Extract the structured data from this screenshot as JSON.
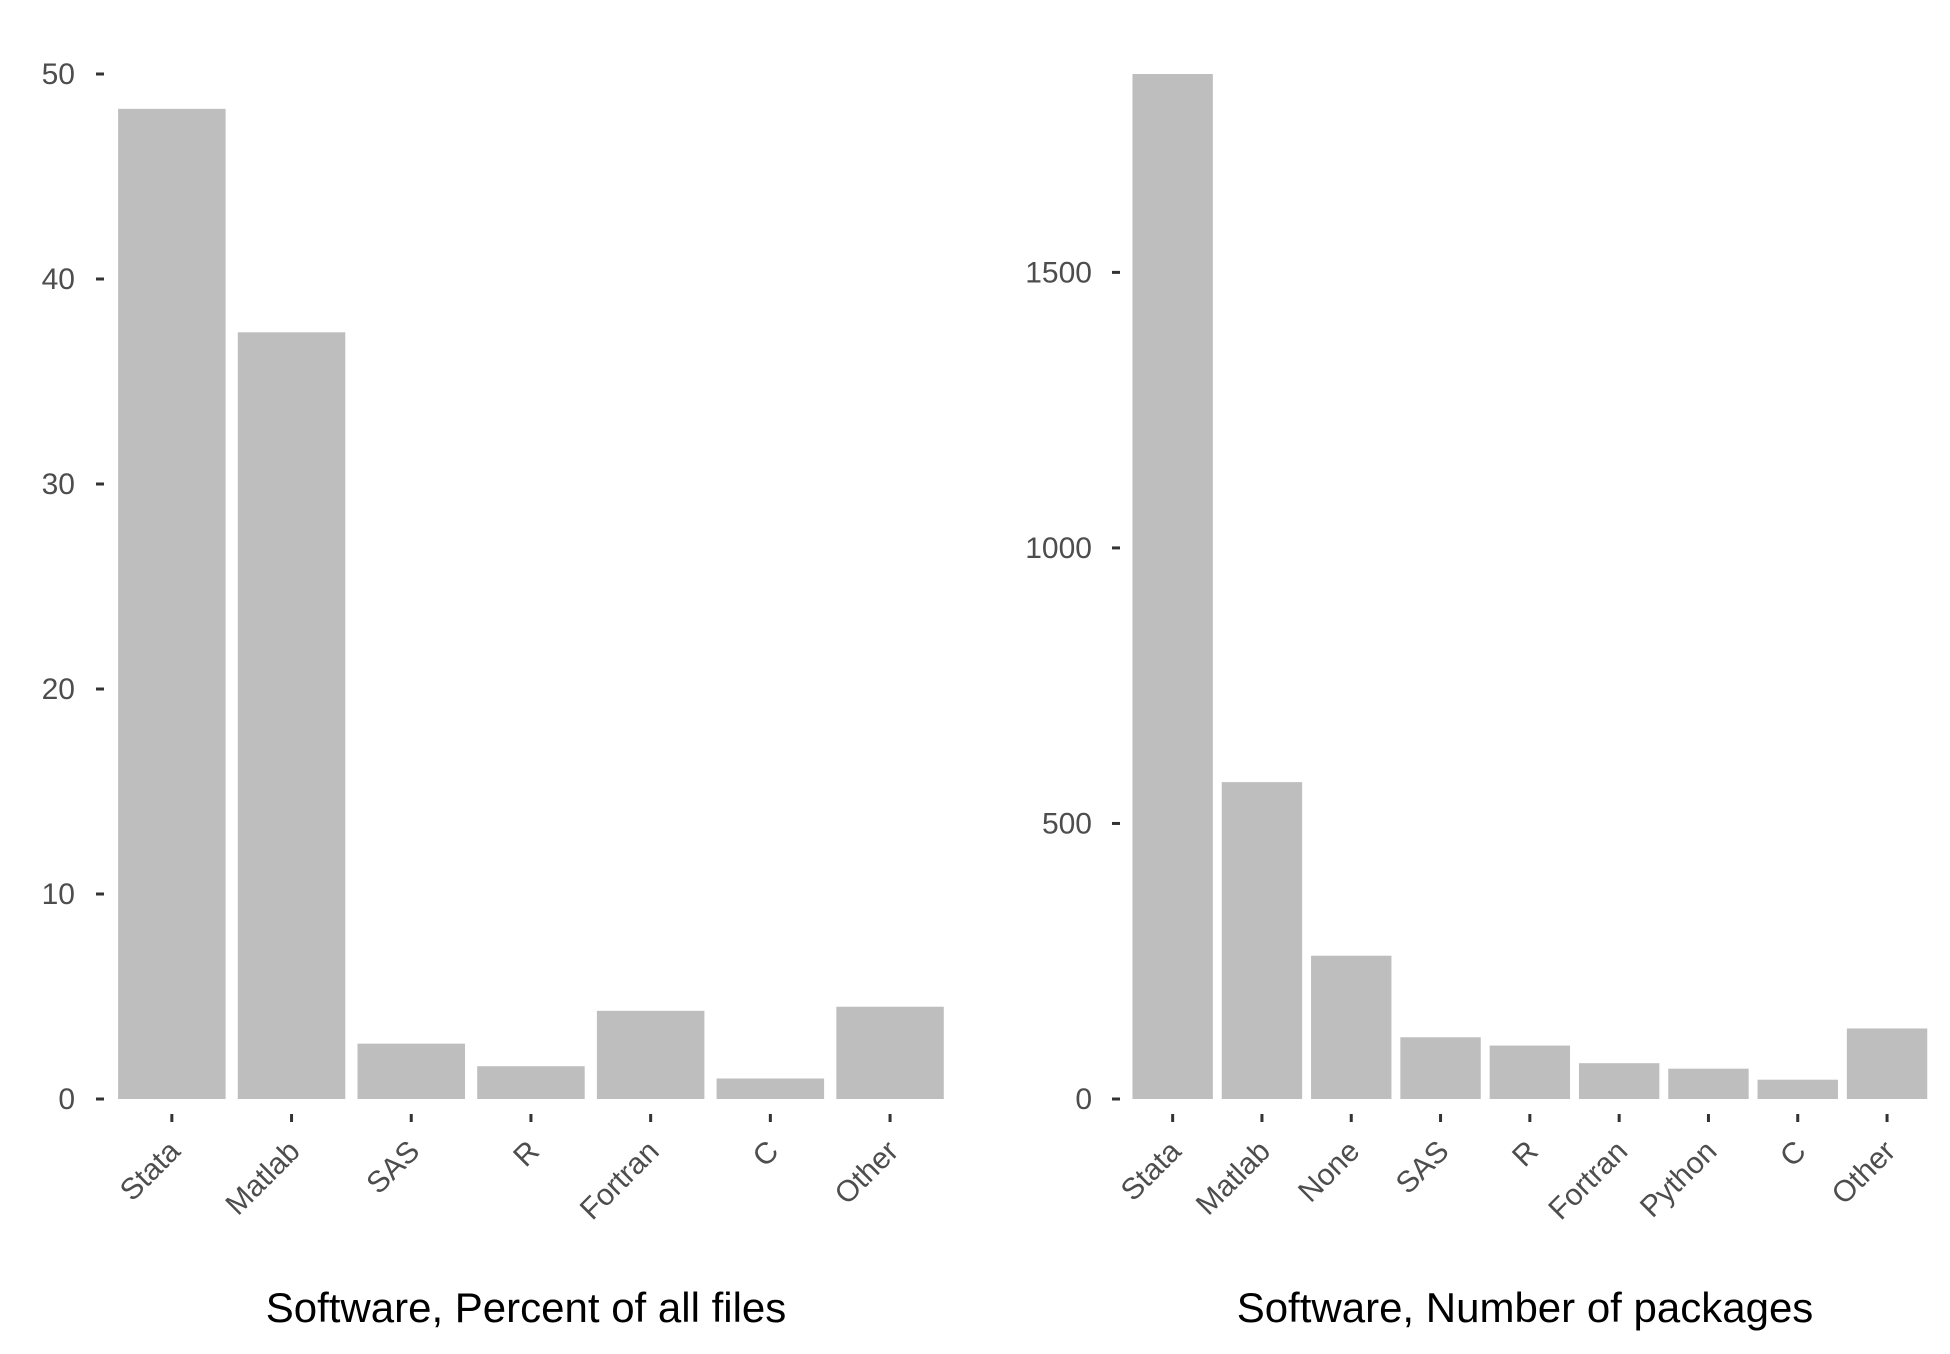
{
  "colors": {
    "bar": "#bebebe",
    "tick": "#333333",
    "tick_label": "#4d4d4d",
    "axis_title": "#000000"
  },
  "chart_data": [
    {
      "type": "bar",
      "title": "",
      "xlabel": "Software, Percent of all files",
      "ylabel": "",
      "categories": [
        "Stata",
        "Matlab",
        "SAS",
        "R",
        "Fortran",
        "C",
        "Other"
      ],
      "values": [
        48.3,
        37.4,
        2.7,
        1.6,
        4.3,
        1.0,
        4.5
      ],
      "ylim": [
        0,
        50
      ],
      "yticks": [
        0,
        10,
        20,
        30,
        40,
        50
      ],
      "ytick_labels": [
        "0",
        "10",
        "20",
        "30",
        "40",
        "50"
      ],
      "grid": false,
      "legend": "none"
    },
    {
      "type": "bar",
      "title": "",
      "xlabel": "Software, Number of packages",
      "ylabel": "",
      "categories": [
        "Stata",
        "Matlab",
        "None",
        "SAS",
        "R",
        "Fortran",
        "Python",
        "C",
        "Other"
      ],
      "values": [
        1860,
        575,
        260,
        112,
        97,
        65,
        55,
        35,
        128
      ],
      "ylim": [
        0,
        1860
      ],
      "yticks": [
        0,
        500,
        1000,
        1500
      ],
      "ytick_labels": [
        "0",
        "500",
        "1000",
        "1500"
      ],
      "grid": false,
      "legend": "none"
    }
  ]
}
